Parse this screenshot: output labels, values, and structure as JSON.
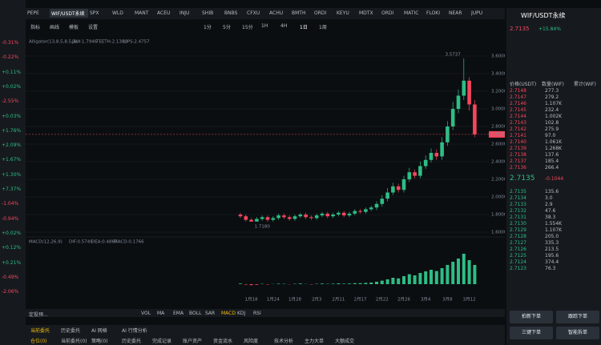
{
  "sidebar_changes": [
    "-0.31%",
    "-0.22%",
    "+0.11%",
    "+0.02%",
    "-2.55%",
    "+0.03%",
    "+1.76%",
    "+2.09%",
    "+1.67%",
    "+1.30%",
    "+7.37%",
    "-1.04%",
    "-0.94%",
    "+0.02%",
    "+0.12%",
    "+0.21%",
    "-0.49%",
    "-2.06%"
  ],
  "tabs": [
    "PEPE",
    "WIF/USDT永续",
    "SPX",
    "WLD",
    "MANT",
    "ACEU",
    "INJU",
    "SHIB",
    "BNBS",
    "CFXU",
    "ACHU",
    "BMTH",
    "ORDI",
    "KEYU",
    "MDTX",
    "ORDI",
    "MATIC",
    "FLOKI",
    "NEAR",
    "JUPU"
  ],
  "toolbar": [
    "指标",
    "画线",
    "模板",
    "设置",
    "1分",
    "5分",
    "15分",
    "1H",
    "4H",
    "1日",
    "1周"
  ],
  "chart_data": {
    "type": "candlestick",
    "indicator_label": "Alligator(13,8,5,8,5,3)",
    "jaw": "JAW:1.7946",
    "teeth": "TEETH:2.1380",
    "lips": "LIPS:2.4757",
    "categories": [
      null,
      null,
      "1月18",
      null,
      null,
      null,
      "1月24",
      null,
      null,
      null,
      "1月28",
      null,
      null,
      null,
      "2月3",
      null,
      null,
      null,
      "2月11",
      null,
      null,
      null,
      "2月17",
      null,
      null,
      null,
      "2月22",
      null,
      null,
      null,
      "2月26",
      null,
      null,
      null,
      "3月4",
      null,
      null,
      null,
      "3月8",
      null,
      null,
      null,
      "3月12",
      null
    ],
    "open": [
      1.8,
      1.78,
      1.74,
      1.72,
      1.75,
      1.77,
      1.74,
      1.76,
      1.79,
      1.77,
      1.75,
      1.78,
      1.8,
      1.77,
      1.76,
      1.79,
      1.81,
      1.78,
      1.8,
      1.82,
      1.79,
      1.81,
      1.84,
      1.83,
      1.86,
      1.88,
      1.92,
      1.98,
      2.05,
      2.12,
      2.08,
      2.2,
      2.28,
      2.24,
      2.35,
      2.42,
      2.5,
      2.46,
      2.62,
      2.8,
      3.0,
      3.15,
      3.32,
      3.05
    ],
    "close": [
      1.78,
      1.74,
      1.72,
      1.75,
      1.77,
      1.74,
      1.76,
      1.79,
      1.77,
      1.75,
      1.78,
      1.8,
      1.77,
      1.76,
      1.79,
      1.81,
      1.78,
      1.8,
      1.82,
      1.79,
      1.81,
      1.84,
      1.83,
      1.86,
      1.88,
      1.92,
      1.98,
      2.05,
      2.12,
      2.08,
      2.2,
      2.28,
      2.24,
      2.35,
      2.42,
      2.5,
      2.46,
      2.62,
      2.8,
      3.0,
      3.15,
      3.32,
      3.05,
      2.71
    ],
    "high": [
      1.82,
      1.8,
      1.76,
      1.77,
      1.79,
      1.79,
      1.78,
      1.81,
      1.81,
      1.79,
      1.8,
      1.82,
      1.82,
      1.79,
      1.81,
      1.83,
      1.83,
      1.82,
      1.84,
      1.84,
      1.83,
      1.86,
      1.86,
      1.88,
      1.9,
      1.95,
      2.02,
      2.1,
      2.16,
      2.15,
      2.24,
      2.33,
      2.31,
      2.4,
      2.47,
      2.55,
      2.54,
      2.68,
      2.86,
      3.08,
      3.22,
      3.5737,
      3.36,
      3.1
    ],
    "low": [
      1.76,
      1.72,
      1.718,
      1.725,
      1.73,
      1.72,
      1.72,
      1.74,
      1.75,
      1.73,
      1.73,
      1.76,
      1.75,
      1.74,
      1.74,
      1.77,
      1.76,
      1.76,
      1.78,
      1.77,
      1.77,
      1.79,
      1.81,
      1.81,
      1.84,
      1.85,
      1.89,
      1.95,
      2.02,
      2.05,
      2.05,
      2.17,
      2.21,
      2.21,
      2.32,
      2.39,
      2.42,
      2.42,
      2.58,
      2.76,
      2.95,
      3.1,
      2.98,
      2.68
    ],
    "high_label": "3.5737",
    "low_label": "1.7180",
    "last_price": "2.7135",
    "ylim": [
      1.6,
      3.6
    ],
    "yticks": [
      {
        "value": 1.6,
        "label": "1.6000"
      },
      {
        "value": 1.8,
        "label": "1.8000"
      },
      {
        "value": 2.0,
        "label": "2.0000"
      },
      {
        "value": 2.2,
        "label": "2.2000"
      },
      {
        "value": 2.4,
        "label": "2.4000"
      },
      {
        "value": 2.6,
        "label": "2.6000"
      },
      {
        "value": 2.8,
        "label": "2.8000"
      },
      {
        "value": 3.0,
        "label": "3.0000"
      },
      {
        "value": 3.2,
        "label": "3.2000"
      },
      {
        "value": 3.4,
        "label": "3.4000"
      },
      {
        "value": 3.6,
        "label": "3.6000"
      }
    ],
    "up_color": "#2ebd85",
    "down_color": "#f6465d",
    "macd": {
      "label": "MACD(12,26,9)",
      "dif": "DIF:0.5749",
      "dea": "DEA:0.4867",
      "macd": "MACD:0.1766",
      "ylim": [
        -0.05,
        0.25
      ],
      "values": [
        0.004,
        -0.003,
        -0.006,
        -0.004,
        0.002,
        -0.002,
        0.001,
        0.003,
        0.002,
        -0.001,
        0.002,
        0.004,
        0.001,
        -0.002,
        0.002,
        0.004,
        0.002,
        0.003,
        0.005,
        0.003,
        0.004,
        0.006,
        0.006,
        0.008,
        0.01,
        0.015,
        0.022,
        0.03,
        0.04,
        0.036,
        0.05,
        0.062,
        0.055,
        0.07,
        0.08,
        0.09,
        0.082,
        0.1,
        0.12,
        0.14,
        0.16,
        0.19,
        0.15,
        0.12
      ]
    }
  },
  "bottom_menu": [
    "定投预...",
    "VOL",
    "MA",
    "EMA",
    "BOLL",
    "SAR",
    "MACD",
    "KDJ",
    "RSI"
  ],
  "bottom_tabs": [
    "当前委托",
    "历史委托",
    "AI 网格",
    "AI 行情分析"
  ],
  "bottom_sub": [
    "仓位(0)",
    "当前委托(0)",
    "策略(0)",
    "历史委托",
    "完成记录",
    "账户资产",
    "资金流水",
    "风险度",
    "技术分析",
    "主力大单",
    "大额成交"
  ],
  "right": {
    "symbol": "WIF/USDT永续",
    "price": "2.7135",
    "change": "+15.84%",
    "book_head": [
      "价格(USDT)",
      "数量(WIF)",
      "累计(WIF)"
    ],
    "asks": [
      [
        "2.7148",
        "277.3"
      ],
      [
        "2.7147",
        "279.2"
      ],
      [
        "2.7146",
        "1.107K"
      ],
      [
        "2.7145",
        "232.4"
      ],
      [
        "2.7144",
        "1.002K"
      ],
      [
        "2.7143",
        "102.8"
      ],
      [
        "2.7142",
        "275.9"
      ],
      [
        "2.7141",
        "97.0"
      ],
      [
        "2.7140",
        "1.061K"
      ],
      [
        "2.7139",
        "1.268K"
      ],
      [
        "2.7138",
        "137.6"
      ],
      [
        "2.7137",
        "185.4"
      ],
      [
        "2.7136",
        "266.4"
      ]
    ],
    "mid": "2.7135",
    "mid_sub": "-0.1044",
    "bids": [
      [
        "2.7135",
        "135.6"
      ],
      [
        "2.7134",
        "3.0"
      ],
      [
        "2.7133",
        "2.9"
      ],
      [
        "2.7132",
        "47.6"
      ],
      [
        "2.7131",
        "38.3"
      ],
      [
        "2.7130",
        "1.554K"
      ],
      [
        "2.7129",
        "1.107K"
      ],
      [
        "2.7128",
        "205.0"
      ],
      [
        "2.7127",
        "335.3"
      ],
      [
        "2.7126",
        "213.5"
      ],
      [
        "2.7125",
        "195.6"
      ],
      [
        "2.7124",
        "374.4"
      ],
      [
        "2.7123",
        "76.3"
      ]
    ],
    "buttons": [
      "拍新下单",
      "跟踪下单",
      "三键下单",
      "智能拆单"
    ]
  }
}
